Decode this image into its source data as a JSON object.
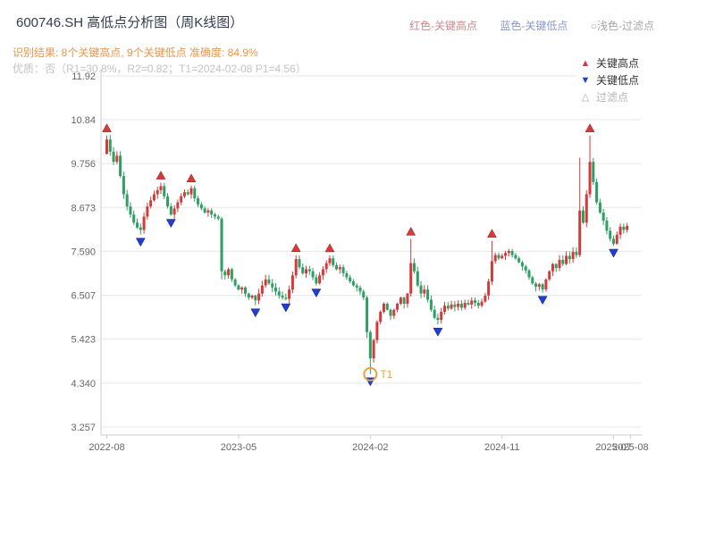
{
  "header": {
    "title": "600746.SH 高低点分析图（周K线图）",
    "legend_top": [
      {
        "label": "红色-关键高点",
        "color": "#c98a8a"
      },
      {
        "label": "蓝色-关键低点",
        "color": "#8a97c9"
      },
      {
        "label": "○浅色-过滤点",
        "color": "#a8a8a8"
      }
    ],
    "result_line": "识别结果: 8个关键高点, 9个关键低点  准确度: 84.9%",
    "quality_line": "优质：否（R1=30.8%，R2=0.82；T1=2024-02-08 P1=4.56）"
  },
  "chart_data": {
    "type": "candlestick",
    "title": "600746.SH 高低点分析图（周K线图）",
    "period": "weekly",
    "ylim": [
      3.257,
      11.92
    ],
    "y_tick_labels": [
      "11.92",
      "10.84",
      "9.756",
      "8.673",
      "7.590",
      "6.507",
      "5.423",
      "4.340",
      "3.257"
    ],
    "y_ticks": [
      11.92,
      10.84,
      9.756,
      8.673,
      7.59,
      6.507,
      5.423,
      4.34,
      3.257
    ],
    "x_ticks": [
      {
        "week": 0,
        "label": "2022-08"
      },
      {
        "week": 39,
        "label": "2023-05"
      },
      {
        "week": 78,
        "label": "2024-02"
      },
      {
        "week": 117,
        "label": "2024-11"
      },
      {
        "week": 150,
        "label": "2025-07"
      },
      {
        "week": 155,
        "label": "2025-08"
      }
    ],
    "first_open": 10.0,
    "closes": [
      10.35,
      10.05,
      9.8,
      9.95,
      9.45,
      9.0,
      8.7,
      8.5,
      8.3,
      8.18,
      8.12,
      8.45,
      8.7,
      8.85,
      9.0,
      9.1,
      9.2,
      8.95,
      8.7,
      8.5,
      8.65,
      8.8,
      8.95,
      9.05,
      9.0,
      9.15,
      8.9,
      8.75,
      8.65,
      8.55,
      8.6,
      8.5,
      8.45,
      8.4,
      7.1,
      7.0,
      7.15,
      6.9,
      6.75,
      6.65,
      6.7,
      6.55,
      6.45,
      6.5,
      6.38,
      6.55,
      6.75,
      6.9,
      6.8,
      6.7,
      6.6,
      6.5,
      6.45,
      6.42,
      6.65,
      7.0,
      7.4,
      7.2,
      7.05,
      7.15,
      7.1,
      6.95,
      6.8,
      7.0,
      7.15,
      7.3,
      7.42,
      7.25,
      7.15,
      7.2,
      7.05,
      6.95,
      6.85,
      6.75,
      6.7,
      6.6,
      6.45,
      5.6,
      4.95,
      5.4,
      5.85,
      6.1,
      6.3,
      6.15,
      6.0,
      6.15,
      6.3,
      6.45,
      6.3,
      6.55,
      7.3,
      7.1,
      6.75,
      6.55,
      6.65,
      6.4,
      6.15,
      5.95,
      5.9,
      6.1,
      6.25,
      6.18,
      6.28,
      6.22,
      6.3,
      6.2,
      6.32,
      6.28,
      6.38,
      6.32,
      6.25,
      6.35,
      6.5,
      6.85,
      7.35,
      7.5,
      7.42,
      7.48,
      7.55,
      7.6,
      7.5,
      7.42,
      7.32,
      7.22,
      7.12,
      6.95,
      6.8,
      6.72,
      6.78,
      6.65,
      6.9,
      7.1,
      7.28,
      7.18,
      7.38,
      7.28,
      7.48,
      7.4,
      7.58,
      7.5,
      8.6,
      8.3,
      9.0,
      9.8,
      9.3,
      8.8,
      8.55,
      8.35,
      8.1,
      7.9,
      7.78,
      8.0,
      8.2,
      8.12,
      8.22
    ],
    "wick_overrides": {
      "0": {
        "high": 10.45
      },
      "34": {
        "low": 6.9
      },
      "77": {
        "low": 5.45
      },
      "78": {
        "low": 4.56
      },
      "90": {
        "high": 7.9
      },
      "114": {
        "high": 7.85
      },
      "140": {
        "high": 9.9
      },
      "143": {
        "high": 10.45
      }
    },
    "key_high_weeks": [
      0,
      16,
      25,
      56,
      66,
      90,
      114,
      143
    ],
    "key_low_weeks": [
      10,
      19,
      44,
      53,
      62,
      78,
      98,
      129,
      150
    ],
    "key_high_count": 8,
    "key_low_count": 9,
    "accuracy": "84.9%",
    "t1": {
      "week": 78,
      "price": 4.56,
      "label": "T1",
      "date": "2024-02-08"
    },
    "legend_box": [
      {
        "label": "关键高点",
        "marker": "up",
        "color": "#d43a3a"
      },
      {
        "label": "关键低点",
        "marker": "down",
        "color": "#1f3fd4"
      },
      {
        "label": "过滤点",
        "marker": "up-hollow",
        "color": "#aaaaaa"
      }
    ],
    "legend_position": "top-right-inside",
    "grid": "horizontal",
    "colors": {
      "up": "#d43a3a",
      "down": "#2e9e62",
      "grid": "#e7e7eb",
      "axis": "#cccccc",
      "tick_text": "#666666",
      "marker_high": "#d43a3a",
      "marker_low": "#1f3fd4",
      "t1": "#e6a23c"
    }
  }
}
